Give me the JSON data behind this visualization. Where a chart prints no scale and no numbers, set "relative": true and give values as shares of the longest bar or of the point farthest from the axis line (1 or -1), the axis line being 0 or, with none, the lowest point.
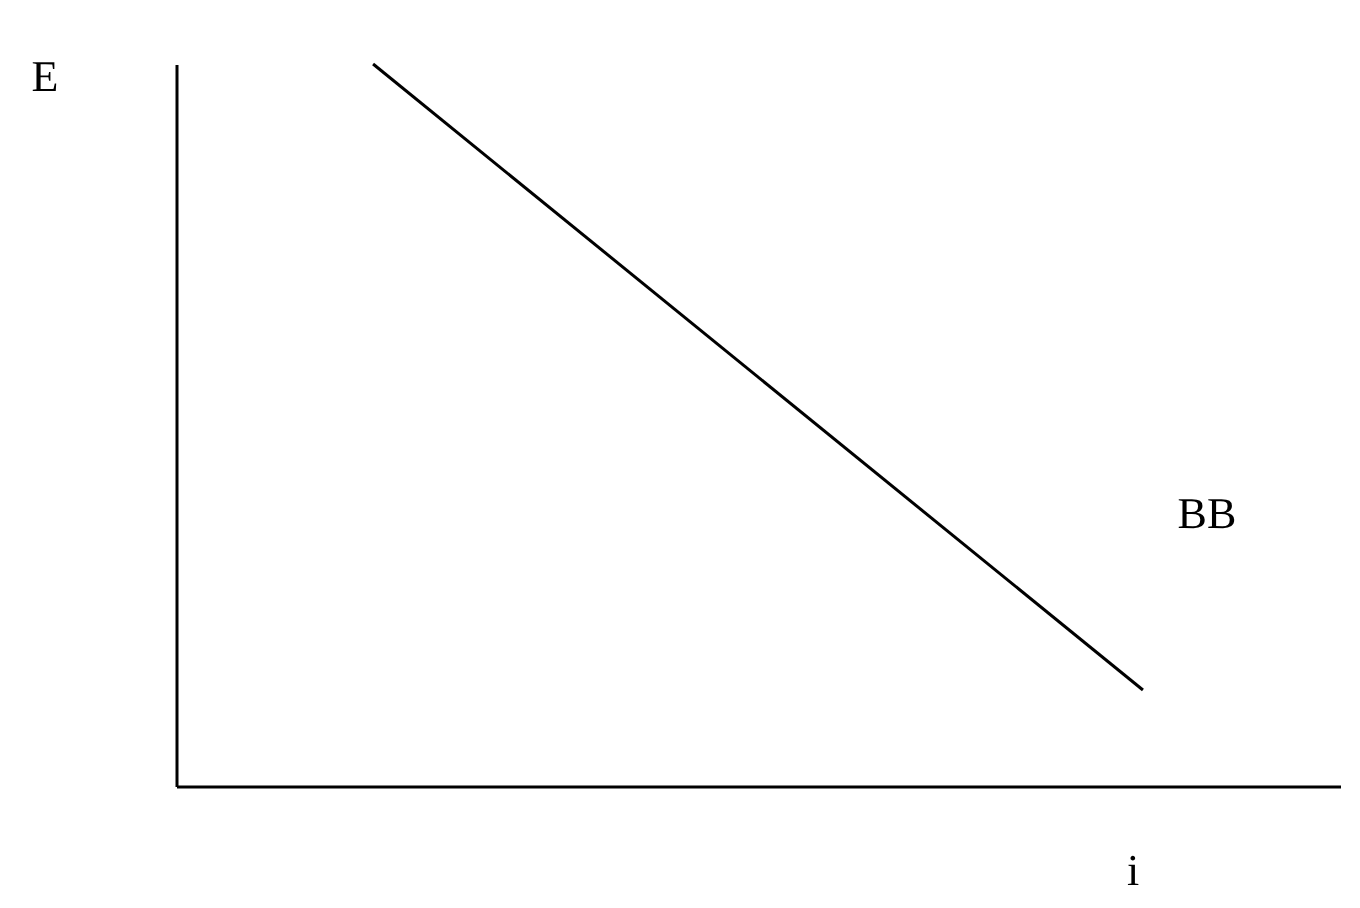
{
  "chart_data": {
    "type": "line",
    "xlabel": "i",
    "ylabel": "E",
    "categories": [
      null,
      null
    ],
    "relative": true,
    "grid": false,
    "legend": false,
    "series": [
      {
        "name": "BB",
        "color": "#000000",
        "values": [
          1,
          0.133
        ]
      }
    ]
  }
}
